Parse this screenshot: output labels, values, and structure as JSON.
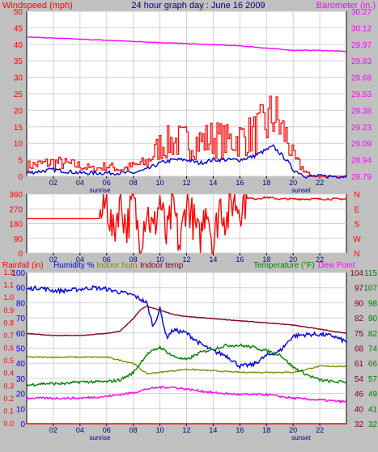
{
  "header": {
    "left_label": "Windspeed (mph)",
    "title": "24 hour graph day : June 16 2009",
    "right_label": "Barometer (in.)"
  },
  "panel3_header": {
    "left_label": "Rainfall (in)",
    "humidity_label": "Humidity %",
    "indoor_hum_label": "Indoor hum",
    "indoor_temp_label": "Indoor temp",
    "temperature_label": "Temperature (°F)",
    "dewpoint_label": "Dew Point"
  },
  "colors": {
    "background": "#c0c0c0",
    "plot_bg": "#ffffff",
    "wind_gust": "#ff0000",
    "wind_avg": "#0000dd",
    "barometer": "#ff00ff",
    "direction": "#ff0000",
    "humidity": "#0000dd",
    "indoor_hum": "#888800",
    "indoor_temp": "#800020",
    "temperature": "#008000",
    "dewpoint": "#ff00ff",
    "rainfall": "#ff0000"
  },
  "chart_data": [
    {
      "type": "line",
      "title": "24 hour graph day : June 16 2009",
      "x_unit": "hour of day",
      "x_ticks": [
        "02",
        "04",
        "06",
        "08",
        "10",
        "12",
        "14",
        "16",
        "18",
        "20",
        "22"
      ],
      "x_markers": [
        "sunrise",
        "sunset"
      ],
      "left_axis": {
        "label": "Windspeed (mph)",
        "ticks": [
          "0",
          "5",
          "10",
          "15",
          "20",
          "25",
          "30",
          "35",
          "40",
          "45",
          "50"
        ],
        "range": [
          0,
          50
        ]
      },
      "right_axis": {
        "label": "Barometer (in.)",
        "ticks": [
          "28.79",
          "28.94",
          "29.09",
          "29.23",
          "29.38",
          "29.53",
          "29.68",
          "29.83",
          "29.97",
          "30.12",
          "30.27"
        ],
        "range": [
          28.79,
          30.27
        ]
      },
      "series": [
        {
          "name": "Wind gust",
          "x": [
            0,
            2,
            4,
            5,
            6,
            7,
            8,
            9,
            10,
            11,
            12,
            13,
            14,
            15,
            16,
            17,
            18,
            18.5,
            19,
            19.5,
            20,
            20.5,
            21,
            22,
            24
          ],
          "y": [
            3,
            4,
            3,
            2,
            3,
            2,
            3,
            4,
            9,
            10,
            10,
            10,
            11,
            10,
            11,
            12,
            15,
            18,
            14,
            11,
            5,
            3,
            1,
            0,
            0
          ]
        },
        {
          "name": "Wind avg",
          "x": [
            0,
            2,
            4,
            5,
            6,
            7,
            8,
            9,
            10,
            11,
            12,
            13,
            14,
            15,
            16,
            17,
            18,
            18.5,
            19,
            19.5,
            20,
            20.5,
            21,
            22,
            24
          ],
          "y": [
            1,
            2,
            1,
            1,
            1,
            1,
            1,
            2,
            4,
            5,
            5,
            4,
            5,
            5,
            5,
            6,
            8,
            9,
            7,
            5,
            2,
            1,
            0,
            0,
            0
          ]
        },
        {
          "name": "Barometer",
          "x": [
            0,
            2,
            4,
            6,
            8,
            10,
            12,
            14,
            16,
            18,
            20,
            22,
            24
          ],
          "y": [
            30.04,
            30.03,
            30.02,
            30.01,
            30.0,
            29.99,
            29.98,
            29.97,
            29.96,
            29.94,
            29.92,
            29.92,
            29.91
          ]
        }
      ]
    },
    {
      "type": "line",
      "x_unit": "hour of day",
      "x_ticks": [
        "02",
        "04",
        "06",
        "08",
        "10",
        "12",
        "14",
        "16",
        "18",
        "20",
        "22"
      ],
      "left_axis": {
        "ticks": [
          "0",
          "90",
          "180",
          "270",
          "360"
        ],
        "range": [
          0,
          360
        ]
      },
      "right_axis": {
        "ticks": [
          "N",
          "W",
          "S",
          "E",
          "N"
        ]
      },
      "series": [
        {
          "name": "Wind direction",
          "x": [
            0,
            5.5,
            6,
            6.5,
            7,
            7.5,
            8,
            8.5,
            9,
            9.5,
            10,
            10.5,
            11,
            11.5,
            12,
            12.5,
            13,
            13.5,
            14,
            14.5,
            15,
            15.5,
            16,
            16.5,
            17,
            18,
            19,
            20,
            21,
            22,
            24
          ],
          "y": [
            210,
            210,
            320,
            100,
            340,
            150,
            330,
            60,
            280,
            120,
            330,
            80,
            300,
            20,
            340,
            200,
            60,
            330,
            30,
            310,
            200,
            330,
            280,
            340,
            330,
            340,
            330,
            330,
            330,
            330,
            330
          ]
        }
      ]
    },
    {
      "type": "line",
      "x_unit": "hour of day",
      "x_ticks": [
        "02",
        "04",
        "06",
        "08",
        "10",
        "12",
        "14",
        "16",
        "18",
        "20",
        "22"
      ],
      "x_markers": [
        "sunrise",
        "sunset"
      ],
      "axes": {
        "rainfall": {
          "label": "Rainfall (in)",
          "ticks": [
            "0.0",
            "0.1",
            "0.2",
            "0.3",
            "0.4",
            "0.5",
            "0.6",
            "0.7",
            "0.8",
            "0.9",
            "1.0",
            "1.1",
            "1.2"
          ],
          "range": [
            0,
            1.2
          ]
        },
        "humidity": {
          "label": "Humidity %",
          "ticks": [
            "0",
            "10",
            "20",
            "30",
            "40",
            "50",
            "60",
            "70",
            "80",
            "90",
            "100"
          ],
          "range": [
            0,
            100
          ]
        },
        "indoor_temp": {
          "label": "Indoor temp",
          "ticks": [
            "32",
            "40",
            "46",
            "54",
            "61",
            "68",
            "75",
            "82",
            "90",
            "97",
            "104"
          ],
          "range": [
            32,
            104
          ]
        },
        "temperature": {
          "label": "Temperature (°F)",
          "ticks": [
            "32",
            "41",
            "49",
            "57",
            "66",
            "74",
            "82",
            "90",
            "98",
            "107",
            "115"
          ],
          "range": [
            32,
            115
          ]
        }
      },
      "series": [
        {
          "name": "Humidity %",
          "axis": "humidity",
          "x": [
            0,
            1,
            2,
            3,
            4,
            5,
            6,
            7,
            8,
            9,
            9.5,
            10,
            10.5,
            11,
            12,
            13,
            14,
            15,
            16,
            17,
            18,
            19,
            20,
            21,
            22,
            23,
            24
          ],
          "y": [
            89,
            90,
            88,
            88,
            89,
            90,
            89,
            87,
            85,
            80,
            64,
            76,
            57,
            62,
            60,
            53,
            48,
            45,
            38,
            39,
            45,
            48,
            58,
            59,
            59,
            58,
            54
          ]
        },
        {
          "name": "Indoor hum",
          "axis": "humidity",
          "x": [
            0,
            2,
            4,
            6,
            8,
            9,
            10,
            12,
            14,
            16,
            18,
            20,
            22,
            24
          ],
          "y": [
            44,
            44,
            44,
            44,
            40,
            33,
            34,
            36,
            35,
            34,
            34,
            34,
            38,
            38
          ]
        },
        {
          "name": "Indoor temp",
          "axis": "indoor_temp",
          "x": [
            0,
            2,
            4,
            6,
            7,
            8,
            8.5,
            9,
            10,
            11,
            12,
            14,
            16,
            18,
            20,
            22,
            24
          ],
          "y": [
            75,
            74,
            74,
            75,
            76,
            82,
            86,
            88,
            86,
            84,
            83,
            82,
            81,
            80,
            79,
            77,
            75
          ]
        },
        {
          "name": "Temperature (°F)",
          "axis": "temperature",
          "x": [
            0,
            1,
            2,
            3,
            4,
            5,
            6,
            7,
            8,
            9,
            10,
            11,
            12,
            13,
            14,
            15,
            16,
            17,
            18,
            19,
            20,
            21,
            22,
            23,
            24
          ],
          "y": [
            53,
            54,
            54,
            54,
            55,
            55,
            55,
            56,
            60,
            70,
            74,
            69,
            67,
            71,
            73,
            75,
            75,
            74,
            72,
            70,
            63,
            59,
            56,
            55,
            55
          ]
        },
        {
          "name": "Dew Point",
          "axis": "temperature",
          "x": [
            0,
            2,
            4,
            6,
            8,
            9,
            10,
            11,
            12,
            14,
            16,
            18,
            20,
            22,
            24
          ],
          "y": [
            46,
            46,
            46,
            47,
            49,
            51,
            52,
            52,
            51,
            49,
            48,
            48,
            46,
            45,
            44
          ]
        },
        {
          "name": "Rainfall (in)",
          "axis": "rainfall",
          "x": [
            0,
            24
          ],
          "y": [
            0.0,
            0.0
          ]
        }
      ]
    }
  ]
}
